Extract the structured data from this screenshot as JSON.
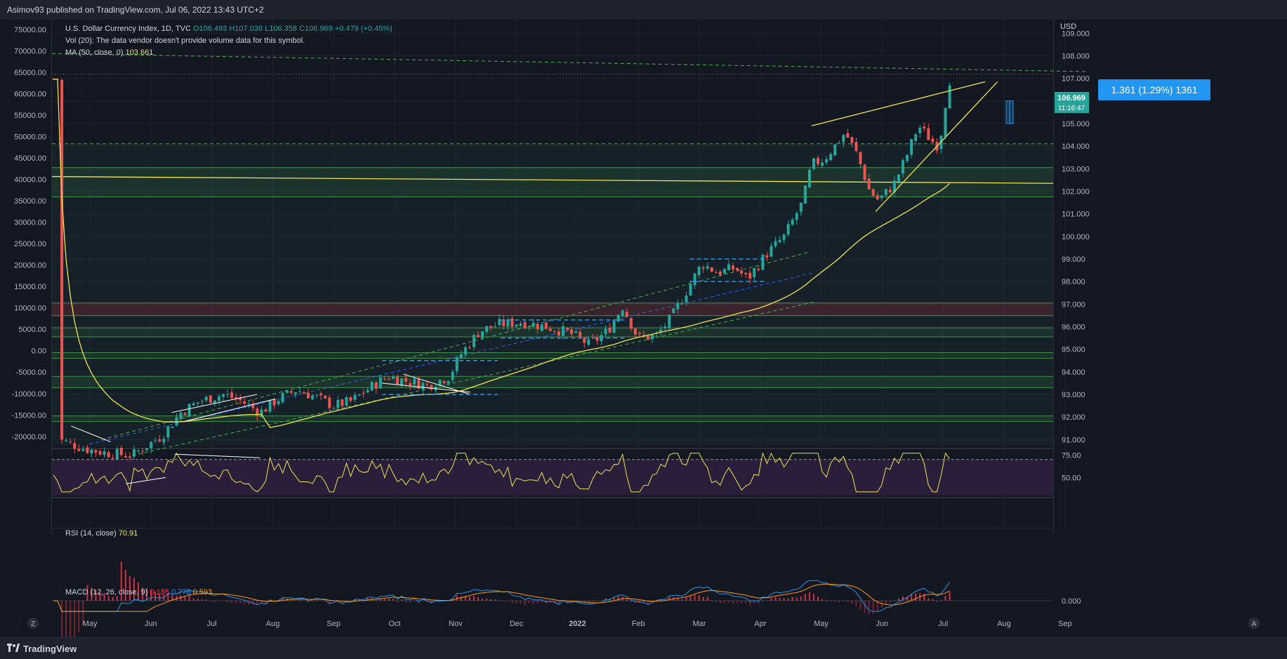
{
  "header": {
    "published": "Asimov93 published on TradingView.com, Jul 06, 2022 13:43 UTC+2"
  },
  "legend": {
    "symbol": "U.S. Dollar Currency Index, 1D, TVC",
    "open": "O106.493",
    "high": "H107.038",
    "low": "L106.358",
    "close": "C106.969",
    "change": "+0.479 (+0.45%)",
    "vol": "Vol (20): The data vendor doesn't provide volume data for this symbol.",
    "ma_label": "MA (50, close, 0)",
    "ma_value": "103.661",
    "rsi_label": "RSI (14, close)",
    "rsi_value": "70.91",
    "macd_label": "MACD (12, 26, close, 9)",
    "macd_hist": "0.185",
    "macd_line": "0.778",
    "macd_signal": "0.593"
  },
  "price_badge": {
    "price": "106.969",
    "countdown": "11:16:47"
  },
  "measure_label": "1.361 (1.29%) 1361",
  "footer": {
    "brand": "TradingView"
  },
  "buttons": {
    "z": "Z",
    "a": "A"
  },
  "colors": {
    "up": "#26a69a",
    "down": "#ef5350",
    "ma": "#f0e34c",
    "zone": "#4caf50",
    "channel": "#4caf50",
    "mid_channel": "#2962ff",
    "rsi": "#f0e34c",
    "rsi_bg": "#2d1f3e",
    "macd": "#2196f3",
    "signal": "#ff9800",
    "accent": "#2196f3"
  },
  "chart_data": {
    "type": "candlestick",
    "title": "U.S. Dollar Currency Index, 1D, TVC",
    "right_axis_unit": "USD",
    "right_ticks": [
      109.0,
      108.0,
      107.0,
      106.0,
      105.0,
      104.0,
      103.0,
      102.0,
      101.0,
      100.0,
      99.0,
      98.0,
      97.0,
      96.0,
      95.0,
      94.0,
      93.0,
      92.0,
      91.0
    ],
    "right_tick_labels": [
      "109.000",
      "108.000",
      "107.000",
      "106.000",
      "105.000",
      "104.000",
      "103.000",
      "102.000",
      "101.000",
      "100.000",
      "99.000",
      "98.000",
      "97.000",
      "96.000",
      "95.000",
      "94.000",
      "93.000",
      "92.000",
      "91.000"
    ],
    "left_ticks": [
      75000,
      70000,
      65000,
      60000,
      55000,
      50000,
      45000,
      40000,
      35000,
      30000,
      25000,
      20000,
      15000,
      10000,
      5000,
      0,
      -5000,
      -10000,
      -15000,
      -20000
    ],
    "left_tick_labels": [
      "75000.00",
      "70000.00",
      "65000.00",
      "60000.00",
      "55000.00",
      "50000.00",
      "45000.00",
      "40000.00",
      "35000.00",
      "30000.00",
      "25000.00",
      "20000.00",
      "15000.00",
      "10000.00",
      "5000.00",
      "0.00",
      "-5000.00",
      "-10000.00",
      "-15000.00",
      "-20000.00"
    ],
    "x_labels": [
      "May",
      "Jun",
      "Jul",
      "Aug",
      "Sep",
      "Oct",
      "Nov",
      "Dec",
      "2022",
      "Feb",
      "Mar",
      "Apr",
      "May",
      "Jun",
      "Jul",
      "Aug",
      "Sep"
    ],
    "x_label_months": [
      0,
      1,
      2,
      3,
      4,
      5,
      6,
      7,
      8,
      9,
      10,
      11,
      12,
      13,
      14,
      15,
      16
    ],
    "ylim": [
      90.7,
      109.6
    ],
    "ma_period": 50,
    "price_anchors": [
      [
        -0.3,
        91.0
      ],
      [
        0.12,
        90.6
      ],
      [
        0.5,
        90.4
      ],
      [
        0.9,
        90.3
      ],
      [
        1.4,
        91.2
      ],
      [
        1.7,
        92.2
      ],
      [
        2.0,
        92.7
      ],
      [
        2.4,
        93.0
      ],
      [
        2.7,
        92.7
      ],
      [
        3.0,
        92.2
      ],
      [
        3.3,
        92.8
      ],
      [
        3.6,
        93.2
      ],
      [
        3.9,
        92.9
      ],
      [
        4.2,
        92.5
      ],
      [
        4.5,
        92.7
      ],
      [
        4.8,
        93.3
      ],
      [
        5.1,
        93.8
      ],
      [
        5.4,
        93.6
      ],
      [
        5.75,
        93.4
      ],
      [
        6.1,
        93.8
      ],
      [
        6.3,
        94.8
      ],
      [
        6.6,
        95.8
      ],
      [
        6.9,
        96.1
      ],
      [
        7.3,
        96.2
      ],
      [
        7.7,
        96.0
      ],
      [
        8.1,
        95.7
      ],
      [
        8.4,
        95.2
      ],
      [
        8.7,
        95.8
      ],
      [
        8.95,
        96.9
      ],
      [
        9.2,
        95.5
      ],
      [
        9.5,
        95.6
      ],
      [
        9.75,
        96.4
      ],
      [
        10.0,
        97.6
      ],
      [
        10.25,
        98.8
      ],
      [
        10.5,
        98.4
      ],
      [
        10.8,
        98.6
      ],
      [
        11.0,
        98.1
      ],
      [
        11.3,
        99.2
      ],
      [
        11.6,
        100.0
      ],
      [
        11.9,
        101.5
      ],
      [
        12.05,
        103.2
      ],
      [
        12.25,
        103.4
      ],
      [
        12.4,
        103.9
      ],
      [
        12.6,
        104.6
      ],
      [
        12.8,
        103.6
      ],
      [
        13.0,
        102.0
      ],
      [
        13.15,
        101.6
      ],
      [
        13.4,
        102.3
      ],
      [
        13.6,
        103.5
      ],
      [
        13.8,
        104.9
      ],
      [
        14.0,
        104.3
      ],
      [
        14.1,
        104.0
      ],
      [
        14.2,
        104.8
      ],
      [
        14.27,
        106.5
      ],
      [
        14.32,
        106.97
      ]
    ],
    "levels": {
      "resistance_top_dashed": [
        108.1,
        107.3
      ],
      "dashed_104": 104.1,
      "zone_103_102": [
        103.05,
        101.75
      ],
      "long_trendline": [
        102.65,
        102.35
      ],
      "zone_97": [
        97.05,
        96.8
      ],
      "zone_96": [
        95.95,
        95.55
      ],
      "zone_94_8": [
        94.85,
        94.6
      ],
      "zone_93_6": [
        93.8,
        93.3
      ],
      "zone_92": [
        92.05,
        91.8
      ]
    },
    "rsi": {
      "range": [
        30,
        80
      ],
      "ticks": [
        75.0,
        50.0
      ],
      "tick_labels": [
        "75.00",
        "50.00"
      ],
      "last": 70.91
    },
    "macd": {
      "ticks": [
        0.0
      ],
      "tick_labels": [
        "0.000"
      ],
      "last_macd": 0.778,
      "last_signal": 0.593,
      "last_hist": 0.185
    }
  }
}
